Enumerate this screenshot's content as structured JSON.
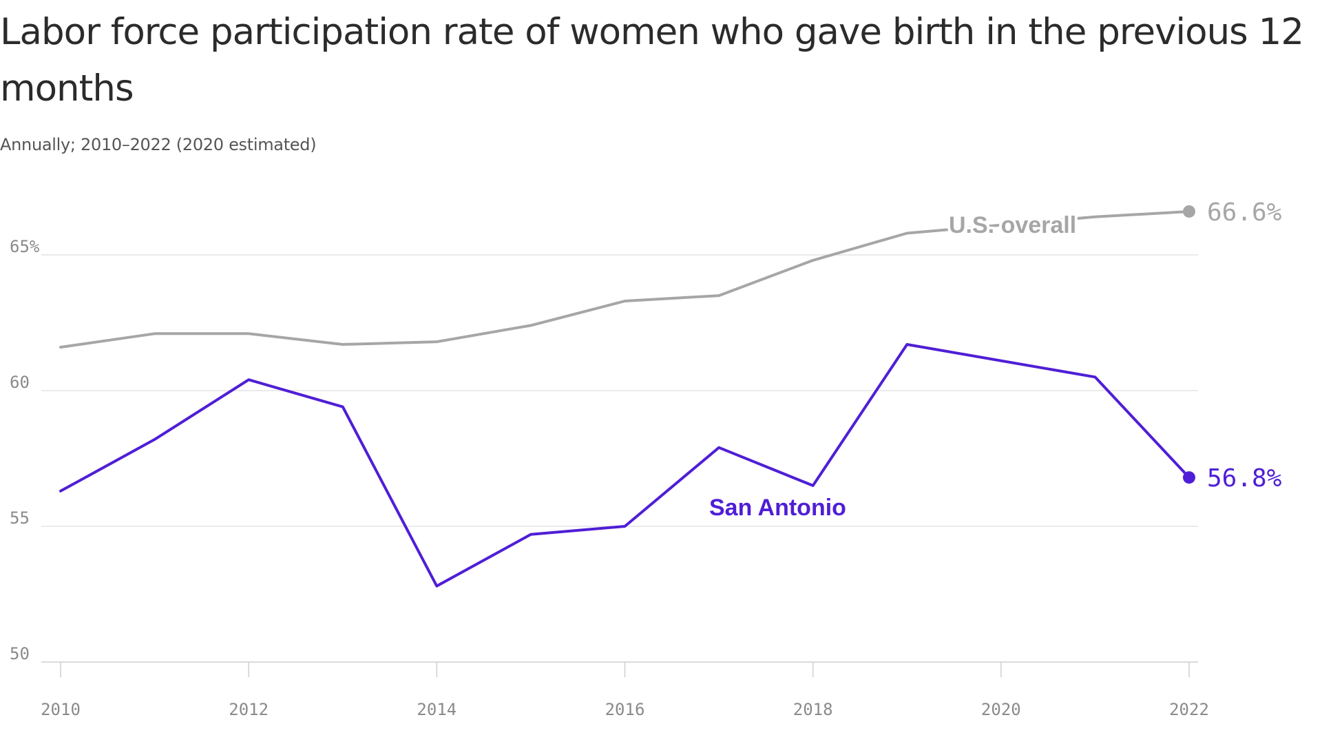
{
  "chart_data": {
    "type": "line",
    "title": "Labor force participation rate of women who gave birth in the previous 12 months",
    "subtitle": "Annually; 2010–2022 (2020 estimated)",
    "xlabel": "",
    "ylabel": "",
    "x": [
      2010,
      2011,
      2012,
      2013,
      2014,
      2015,
      2016,
      2017,
      2018,
      2019,
      2021,
      2022
    ],
    "xlim": [
      2010,
      2022
    ],
    "ylim": [
      50,
      66.6
    ],
    "x_ticks": [
      "2010",
      "2012",
      "2014",
      "2016",
      "2018",
      "2020",
      "2022"
    ],
    "y_ticks": [
      {
        "value": 50,
        "label": "50"
      },
      {
        "value": 55,
        "label": "55"
      },
      {
        "value": 60,
        "label": "60"
      },
      {
        "value": 65,
        "label": "65%"
      }
    ],
    "grid": true,
    "legend": "direct labels",
    "series": [
      {
        "name": "U.S. overall",
        "color": "#a6a6a6",
        "values": [
          61.6,
          62.1,
          62.1,
          61.7,
          61.8,
          62.4,
          63.3,
          63.5,
          64.8,
          65.8,
          66.4,
          66.6
        ],
        "end_label": "66.6%"
      },
      {
        "name": "San Antonio",
        "color": "#4f1ed6",
        "values": [
          56.3,
          58.2,
          60.4,
          59.4,
          52.8,
          54.7,
          55.0,
          57.9,
          56.5,
          61.7,
          60.5,
          56.8
        ],
        "end_label": "56.8%"
      }
    ]
  }
}
